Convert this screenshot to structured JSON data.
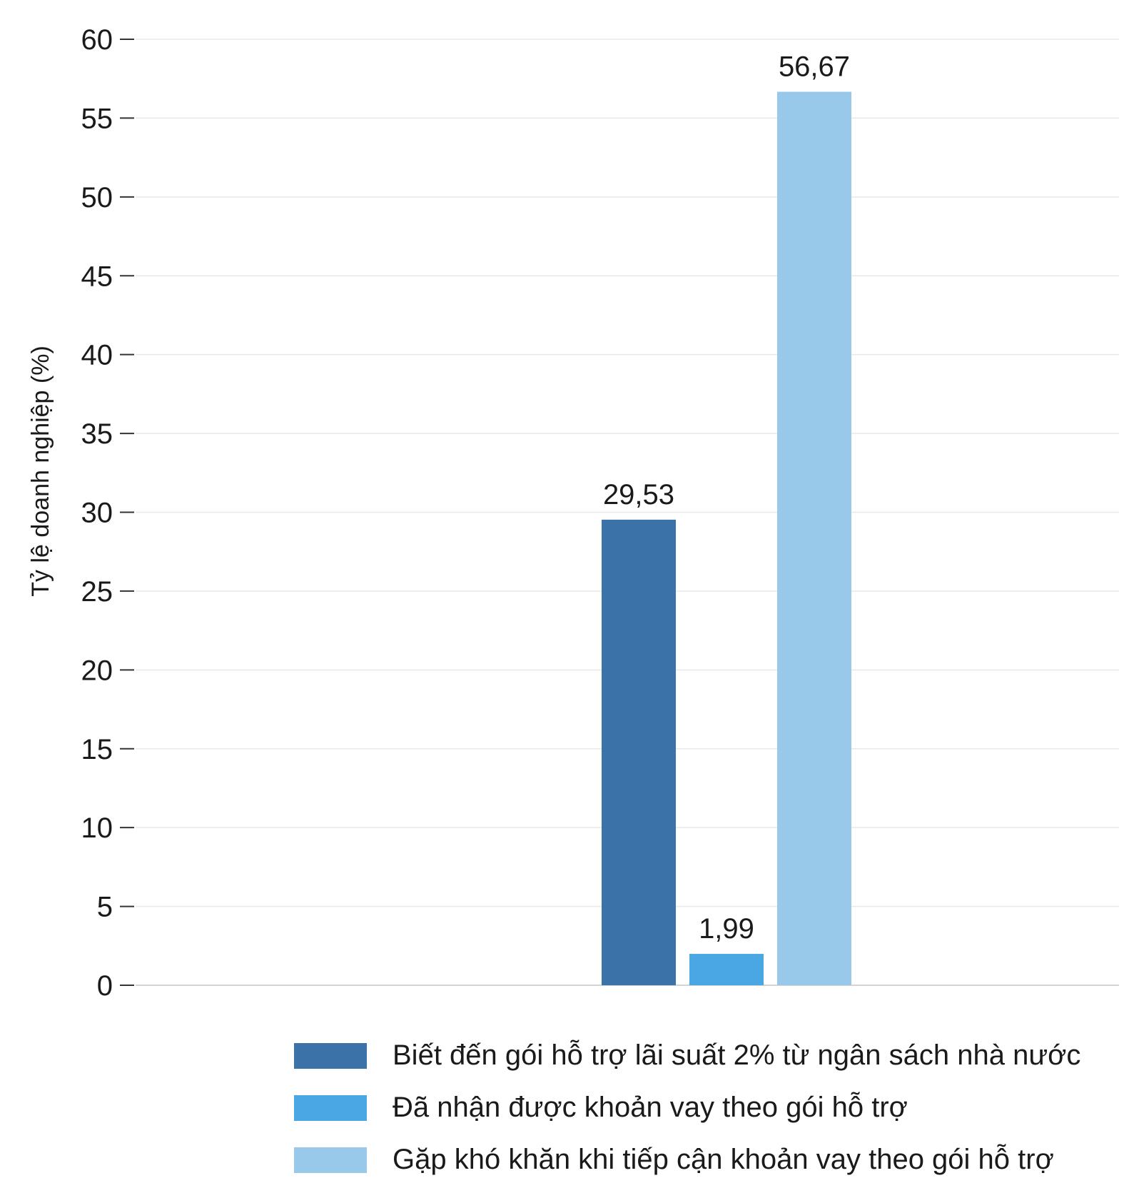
{
  "chart_data": {
    "type": "bar",
    "ylabel": "Tỷ lệ doanh nghiệp (%)",
    "ylim": [
      0,
      60
    ],
    "yticks": [
      0,
      5,
      10,
      15,
      20,
      25,
      30,
      35,
      40,
      45,
      50,
      55,
      60
    ],
    "grid": true,
    "legend_position": "bottom-right",
    "series": [
      {
        "name": "Biết đến gói hỗ trợ lãi suất 2% từ ngân sách nhà nước",
        "value": 29.53,
        "label": "29,53",
        "color": "#3b73a8"
      },
      {
        "name": "Đã nhận được khoản vay theo gói hỗ trợ",
        "value": 1.99,
        "label": "1,99",
        "color": "#4aa7e3"
      },
      {
        "name": "Gặp khó khăn khi tiếp cận khoản vay theo gói hỗ trợ",
        "value": 56.67,
        "label": "56,67",
        "color": "#98c9eb"
      }
    ]
  }
}
